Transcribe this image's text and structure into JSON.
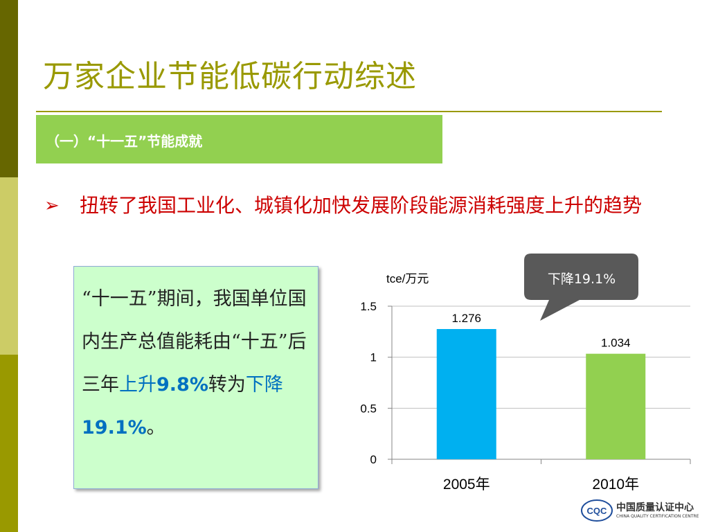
{
  "slide": {
    "title": "万家企业节能低碳行动综述",
    "section_label": "（一）“十一五”节能成就",
    "bullet_marker": "➢",
    "bullet_text": "扭转了我国工业化、城镇化加快发展阶段能源消耗强度上升的趋势"
  },
  "info_box": {
    "part1": "“十一五”期间，我国单位国内生产总值能耗由“十五”后三年",
    "up_word": "上升",
    "up_value": "9.8%",
    "part2": "转为",
    "down_word": "下降",
    "down_value": "19.1%",
    "part3": "。"
  },
  "callout": {
    "text": "下降19.1%",
    "color": "#595959"
  },
  "chart_data": {
    "type": "bar",
    "title": "",
    "ylabel": "tce/万元",
    "xlabel": "",
    "categories": [
      "2005年",
      "2010年"
    ],
    "values": [
      1.276,
      1.034
    ],
    "data_labels": [
      "1.276",
      "1.034"
    ],
    "bar_colors": [
      "#00b0f0",
      "#92d050"
    ],
    "ylim": [
      0,
      1.5
    ],
    "yticks": [
      0,
      0.5,
      1,
      1.5
    ],
    "ytick_labels": [
      "0",
      "0.5",
      "1",
      "1.5"
    ],
    "grid": true,
    "legend": "none"
  },
  "logo": {
    "mark": "CQC",
    "name_cn": "中国质量认证中心",
    "name_en": "CHINA QUALITY CERTIFICATION CENTRE"
  },
  "colors": {
    "title": "#999900",
    "section_bar": "#92d050",
    "bullet": "#cc0000",
    "info_box_bg": "#ccffcc",
    "highlight": "#0070c0"
  }
}
